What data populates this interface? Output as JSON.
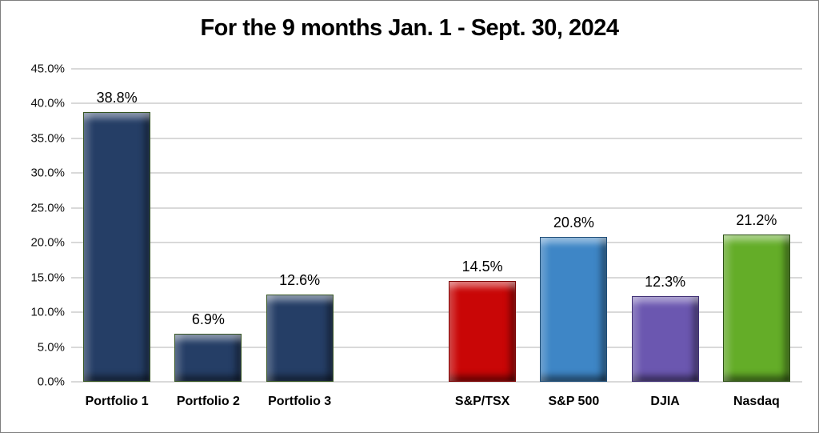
{
  "chart_data": {
    "type": "bar",
    "title": "For the 9 months Jan. 1 - Sept. 30, 2024",
    "categories": [
      "Portfolio 1",
      "Portfolio 2",
      "Portfolio 3",
      "S&P/TSX",
      "S&P 500",
      "DJIA",
      "Nasdaq"
    ],
    "values": [
      38.8,
      6.9,
      12.6,
      14.5,
      20.8,
      12.3,
      21.2
    ],
    "data_labels": [
      "38.8%",
      "6.9%",
      "12.6%",
      "14.5%",
      "20.8%",
      "12.3%",
      "21.2%"
    ],
    "bar_colors": [
      "#253e66",
      "#253e66",
      "#253e66",
      "#c90606",
      "#3e86c6",
      "#6b57b0",
      "#64ad28"
    ],
    "bar_border_colors": [
      "#375623",
      "#375623",
      "#375623",
      "#7c0404",
      "#1f4e79",
      "#403075",
      "#2d5016"
    ],
    "group_gap_after_index": 2,
    "xlabel": "",
    "ylabel": "",
    "ylim": [
      0,
      45
    ],
    "ytick_step": 5,
    "ytick_labels": [
      "0.0%",
      "5.0%",
      "10.0%",
      "15.0%",
      "20.0%",
      "25.0%",
      "30.0%",
      "35.0%",
      "40.0%",
      "45.0%"
    ],
    "grid": true,
    "legend": false,
    "gridline_color": "#d9d9d9",
    "background_color": "#ffffff",
    "title_color": "#000000"
  }
}
